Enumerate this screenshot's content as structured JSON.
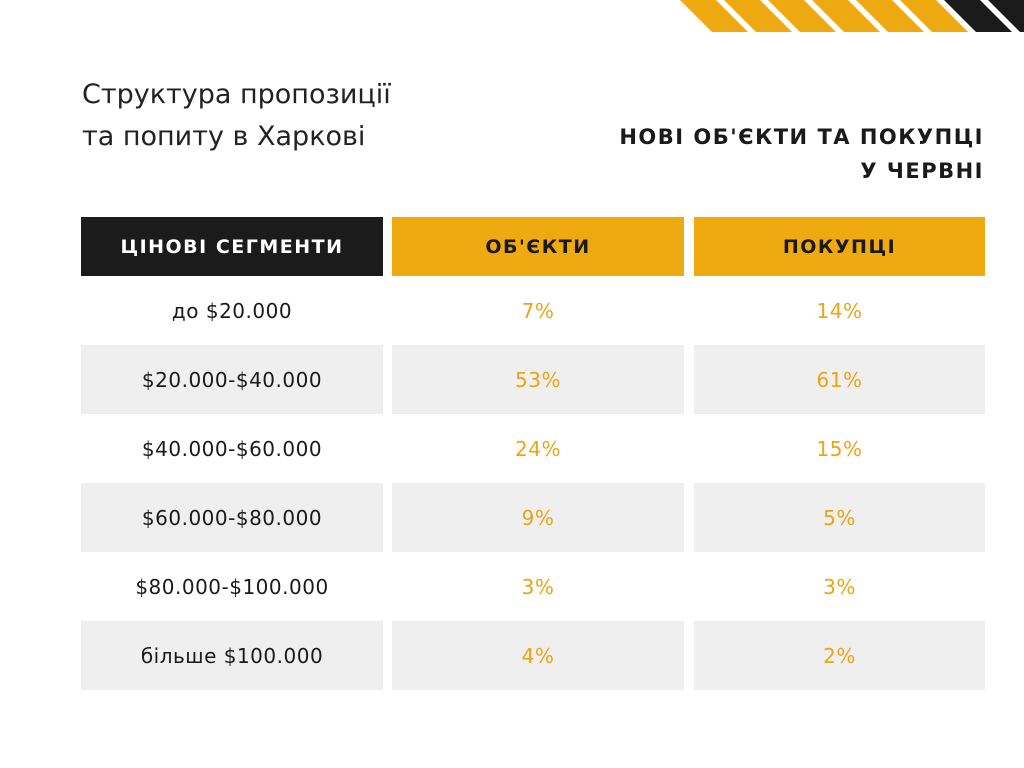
{
  "title": {
    "line1": "Структура пропозиції",
    "line2": "та попиту в Харкові"
  },
  "subtitle": {
    "line1": "НОВІ ОБ'ЄКТИ ТА ПОКУПЦІ",
    "line2": "У ЧЕРВНІ"
  },
  "headers": {
    "segments": "ЦІНОВІ СЕГМЕНТИ",
    "objects": "ОБ'ЄКТИ",
    "buyers": "ПОКУПЦІ"
  },
  "rows": [
    {
      "segment": "до $20.000",
      "objects": "7%",
      "buyers": "14%"
    },
    {
      "segment": "$20.000-$40.000",
      "objects": "53%",
      "buyers": "61%"
    },
    {
      "segment": "$40.000-$60.000",
      "objects": "24%",
      "buyers": "15%"
    },
    {
      "segment": "$60.000-$80.000",
      "objects": "9%",
      "buyers": "5%"
    },
    {
      "segment": "$80.000-$100.000",
      "objects": "3%",
      "buyers": "3%"
    },
    {
      "segment": "більше $100.000",
      "objects": "4%",
      "buyers": "2%"
    }
  ],
  "colors": {
    "accent": "#efa911",
    "dark": "#1b1b1b",
    "row_shade": "#efefef",
    "value_text": "#e9a514"
  }
}
